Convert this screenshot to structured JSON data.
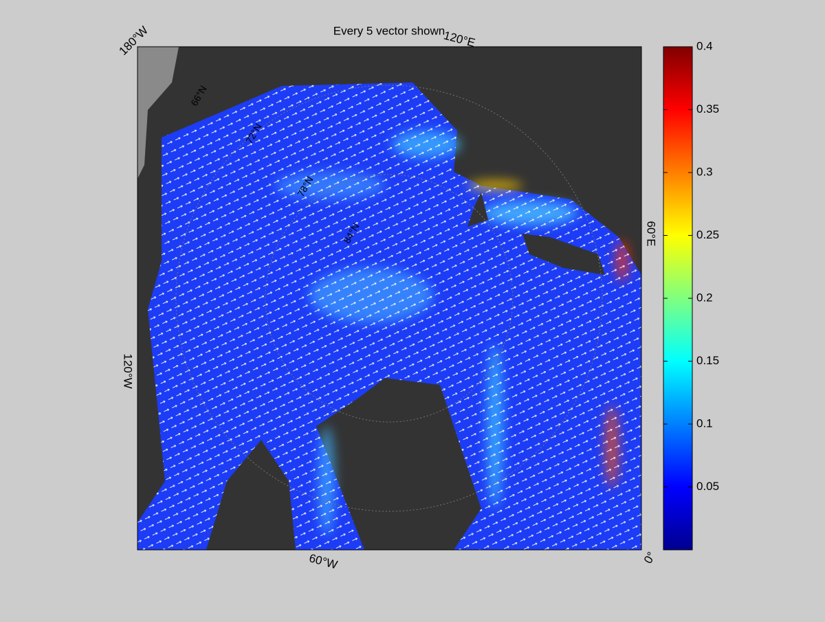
{
  "map": {
    "title": "Every 5 vector shown",
    "longitude_labels": [
      "180°W",
      "120°E",
      "60°E",
      "0°",
      "60°W",
      "120°W"
    ],
    "latitude_labels": [
      "66°N",
      "72°N",
      "78°N",
      "84°N"
    ],
    "colorbar": {
      "colormap": "jet",
      "lim": [
        0,
        0.4
      ],
      "ticks": [
        0.05,
        0.1,
        0.15,
        0.2,
        0.25,
        0.3,
        0.35,
        0.4
      ]
    }
  }
}
